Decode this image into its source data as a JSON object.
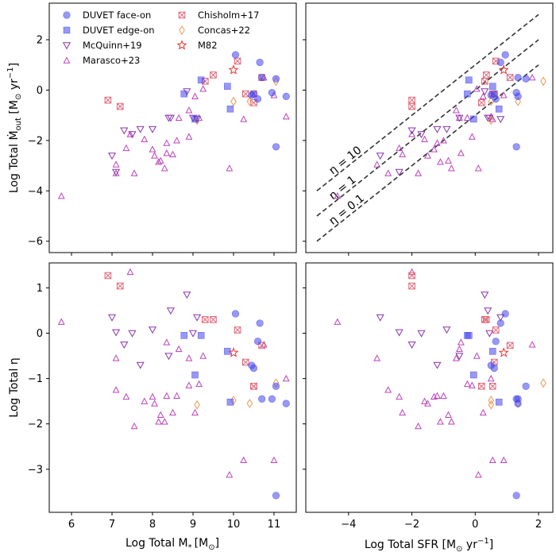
{
  "chart_data": {
    "type": "scatter",
    "colors": {
      "duvet": "#4444ee",
      "mcquinn": "#8833aa",
      "marasco": "#bb44bb",
      "chisholm": "#dd6677",
      "concas": "#ee9955",
      "m82": "#ee3333"
    },
    "legend": [
      {
        "label": "DUVET face-on",
        "key": "duvet_face"
      },
      {
        "label": "DUVET edge-on",
        "key": "duvet_edge"
      },
      {
        "label": "McQuinn+19",
        "key": "mcquinn"
      },
      {
        "label": "Marasco+23",
        "key": "marasco"
      },
      {
        "label": "Chisholm+17",
        "key": "chisholm"
      },
      {
        "label": "Concas+22",
        "key": "concas"
      },
      {
        "label": "M82",
        "key": "m82"
      }
    ],
    "axes": {
      "mstar": {
        "label": "Log Total M",
        "sub": "*",
        "unit": "[M",
        "unit_sub": "⊙",
        "unit_end": "]",
        "range": [
          5.45,
          11.55
        ],
        "ticks": [
          6,
          7,
          8,
          9,
          10,
          11
        ]
      },
      "sfr": {
        "label": "Log Total SFR [M",
        "sub": "⊙",
        "unit_end": " yr",
        "sup": "−1",
        "close": "]",
        "range": [
          -5.35,
          2.45
        ],
        "ticks": [
          -4,
          -2,
          0,
          2
        ]
      },
      "mout": {
        "label": "Log Total Ṁ",
        "sub": "out",
        "unit": " [M",
        "unit_sub": "⊙",
        "unit_end": " yr",
        "sup": "−1",
        "close": "]",
        "range": [
          -6.45,
          3.45
        ],
        "ticks": [
          -6,
          -4,
          -2,
          0,
          2
        ]
      },
      "eta": {
        "label": "Log Total η",
        "range": [
          -3.95,
          1.55
        ],
        "ticks": [
          -3,
          -2,
          -1,
          0,
          1
        ]
      }
    },
    "tick_labels": {
      "mstar": [
        "6",
        "7",
        "8",
        "9",
        "10",
        "11"
      ],
      "sfr": [
        "−4",
        "−2",
        "0",
        "2"
      ],
      "mout": [
        "−6",
        "−4",
        "−2",
        "0",
        "2"
      ],
      "eta": [
        "−3",
        "−2",
        "−1",
        "0",
        "1"
      ]
    },
    "eta_lines": [
      {
        "eta": 10,
        "label": "η = 10"
      },
      {
        "eta": 1,
        "label": "η = 1"
      },
      {
        "eta": 0.1,
        "label": "η = 0.1"
      }
    ],
    "eta_line_range": [
      -5.0,
      2.0
    ],
    "datasets": {
      "duvet_face": {
        "mstar": [
          10.05,
          10.45,
          10.5,
          10.6,
          10.65,
          10.7,
          10.95,
          11.05,
          11.05,
          11.3
        ],
        "sfr": [
          0.95,
          0.5,
          0.6,
          0.65,
          0.8,
          1.35,
          1.3,
          1.6,
          1.3,
          1.35
        ],
        "mout": [
          1.4,
          -0.2,
          -0.15,
          -0.35,
          1.1,
          0.5,
          -0.1,
          0.45,
          -2.25,
          -0.25
        ],
        "eta": [
          0.43,
          -0.71,
          -0.77,
          -0.18,
          0.22,
          -1.45,
          -1.45,
          -1.17,
          -3.58,
          -1.55
        ]
      },
      "duvet_edge": {
        "mstar": [
          8.78,
          9.05,
          9.2,
          9.85,
          9.92
        ],
        "sfr": [
          -0.25,
          -0.05,
          -0.2,
          0.55,
          0.75
        ],
        "mout": [
          -0.15,
          -1.15,
          0.4,
          0.15,
          -0.75
        ],
        "eta": [
          -0.05,
          -0.92,
          -0.05,
          -0.4,
          -1.52
        ]
      },
      "mcquinn": {
        "mstar": [
          7.0,
          7.1,
          7.3,
          7.5,
          7.7,
          8.0,
          8.4,
          8.45,
          8.85,
          9.0,
          9.1
        ],
        "sfr": [
          -3.0,
          -2.4,
          -2.0,
          -1.7,
          -1.2,
          -0.9,
          -0.5,
          0.4,
          0.3,
          0.45,
          0.8
        ],
        "mout": [
          -2.6,
          -3.25,
          -1.6,
          -1.75,
          -1.55,
          -1.55,
          -1.1,
          -1.1,
          -0.05,
          -1.1,
          -1.15
        ],
        "eta": [
          0.35,
          0.02,
          -0.25,
          0.0,
          -0.7,
          0.08,
          -0.5,
          0.5,
          0.85,
          0.0,
          0.35
        ]
      },
      "marasco": {
        "mstar": [
          5.75,
          7.1,
          7.1,
          7.35,
          7.45,
          7.55,
          7.8,
          8.0,
          8.05,
          8.15,
          8.2,
          8.3,
          8.35,
          8.35,
          8.5,
          8.6,
          8.65,
          8.9,
          8.9,
          9.05,
          9.15,
          9.25,
          9.9,
          10.25,
          10.75,
          11.0,
          11.3
        ],
        "sfr": [
          -4.35,
          -3.1,
          -2.75,
          -2.4,
          -2.0,
          -1.8,
          -1.6,
          -1.3,
          -1.5,
          -1.1,
          -0.85,
          -0.75,
          -1.2,
          -0.45,
          -2.3,
          -1.0,
          -0.5,
          -0.1,
          -0.6,
          0.25,
          -0.25,
          0.05,
          0.1,
          0.55,
          1.8,
          0.9,
          0.5
        ],
        "mout": [
          -4.2,
          -2.95,
          -3.3,
          -2.3,
          -1.75,
          -3.3,
          -1.95,
          -2.35,
          -2.6,
          -2.85,
          -2.8,
          -3.1,
          -2.1,
          -2.5,
          -2.55,
          -2.0,
          -1.1,
          -1.85,
          -0.8,
          -0.25,
          -1.1,
          0.05,
          -3.1,
          -1.15,
          0.5,
          -0.2,
          -1.05
        ],
        "eta": [
          0.25,
          -0.55,
          -1.25,
          -1.4,
          1.35,
          -2.05,
          -1.5,
          -1.4,
          -1.55,
          -1.95,
          -1.8,
          -1.95,
          -1.38,
          -0.2,
          -1.75,
          -1.38,
          -0.35,
          -1.15,
          -0.55,
          -1.75,
          -1.12,
          -0.5,
          -3.12,
          -2.8,
          -0.25,
          -2.8,
          -1.0
        ]
      },
      "chisholm": {
        "mstar": [
          6.9,
          7.2,
          9.3,
          9.5,
          10.1,
          10.3,
          10.5,
          10.5,
          10.7
        ],
        "sfr": [
          -2.0,
          -2.0,
          0.3,
          0.35,
          0.65,
          0.6,
          0.2,
          0.55,
          1.1
        ],
        "mout": [
          -0.4,
          -0.65,
          0.35,
          0.6,
          1.15,
          -0.15,
          -0.5,
          -0.15,
          0.5
        ],
        "eta": [
          1.27,
          1.04,
          0.3,
          0.3,
          0.07,
          -0.64,
          -1.17,
          -1.17,
          -0.27
        ]
      },
      "concas": {
        "mstar": [
          9.1,
          10.0,
          10.4,
          11.05
        ],
        "sfr": [
          0.5,
          0.5,
          1.35,
          2.15
        ],
        "mout": [
          -1.2,
          -0.45,
          -0.45,
          0.35
        ],
        "eta": [
          -1.58,
          -1.48,
          -1.55,
          -1.1
        ]
      },
      "m82": {
        "mstar": [
          10.0
        ],
        "sfr": [
          0.9
        ],
        "mout": [
          0.8
        ],
        "eta": [
          -0.43
        ]
      }
    }
  }
}
